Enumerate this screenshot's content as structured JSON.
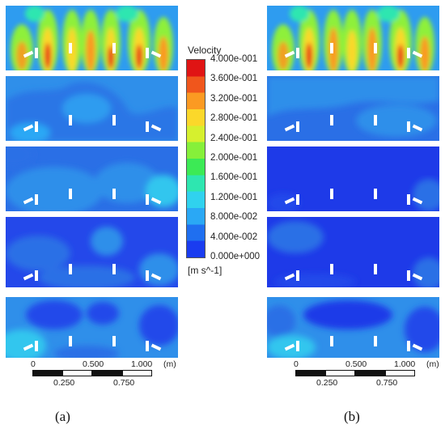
{
  "legend": {
    "title": "Velocity",
    "ticks": [
      "4.000e-001",
      "3.600e-001",
      "3.200e-001",
      "2.800e-001",
      "2.400e-001",
      "2.000e-001",
      "1.600e-001",
      "1.200e-001",
      "8.000e-002",
      "4.000e-002",
      "0.000e+000"
    ],
    "unit": "[m s^-1]",
    "colors": [
      "#1a3cf0",
      "#1f6ff0",
      "#2aa8f5",
      "#30d2ee",
      "#2ee6b0",
      "#3cea55",
      "#86f03a",
      "#d6f02e",
      "#fbd82a",
      "#fb9a22",
      "#f0561c",
      "#e01414"
    ]
  },
  "scale_bar": {
    "top_labels": [
      "0",
      "0.500",
      "1.000",
      "(m)"
    ],
    "bottom_labels": [
      "0.250",
      "0.750"
    ]
  },
  "captions": [
    "(a)",
    "(b)"
  ]
}
